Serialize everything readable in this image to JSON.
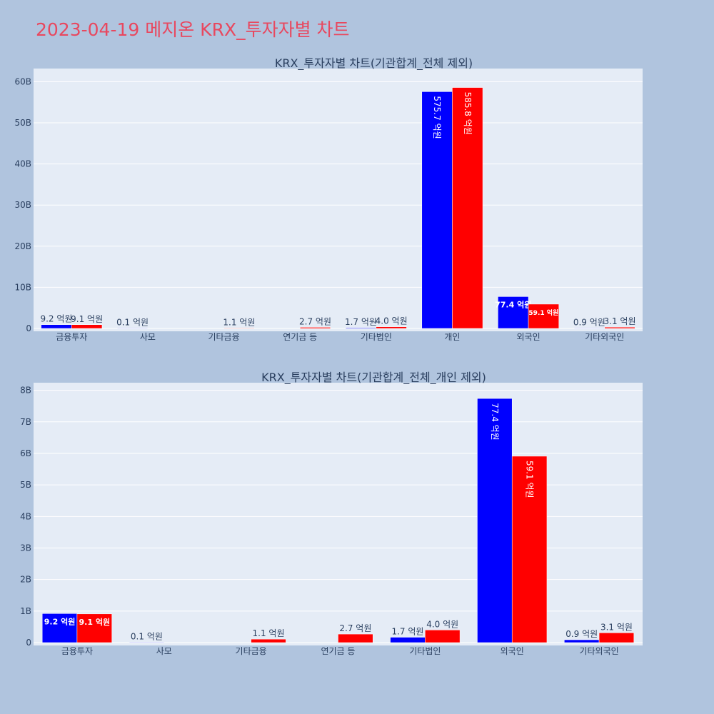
{
  "page": {
    "title": "2023-04-19 메지온 KRX_투자자별 차트"
  },
  "colors": {
    "background": "#b0c4de",
    "plot_bg": "#e5ecf6",
    "title": "#e8485f",
    "series_a": "#0000ff",
    "series_b": "#ff0000",
    "grid": "#ffffff",
    "text": "#2a3f5f"
  },
  "chart_data": [
    {
      "type": "bar",
      "title": "KRX_투자자별 차트(기관합계_전체 제외)",
      "categories": [
        "금융투자",
        "사모",
        "기타금융",
        "연기금 등",
        "기타법인",
        "개인",
        "외국인",
        "기타외국인"
      ],
      "series": [
        {
          "color": "#0000ff",
          "values": [
            0.92,
            0.01,
            null,
            null,
            0.17,
            57.57,
            7.74,
            0.09
          ],
          "labels": [
            "9.2 억원",
            "0.1 억원",
            "",
            "",
            "1.7 억원",
            "575.7 억원",
            "77.4 억원",
            "0.9 억원"
          ]
        },
        {
          "color": "#ff0000",
          "values": [
            0.91,
            null,
            0.11,
            0.27,
            0.4,
            58.58,
            5.91,
            0.31
          ],
          "labels": [
            "9.1 억원",
            "",
            "1.1 억원",
            "2.7 억원",
            "4.0 억원",
            "585.8 억원",
            "59.1 억원",
            "3.1 억원"
          ]
        }
      ],
      "ylim": [
        0,
        62.5
      ],
      "yticks": [
        0,
        10,
        20,
        30,
        40,
        50,
        60
      ],
      "ytick_labels": [
        "0",
        "10B",
        "20B",
        "30B",
        "40B",
        "50B",
        "60B"
      ],
      "grid": true
    },
    {
      "type": "bar",
      "title": "KRX_투자자별 차트(기관합계_전체_개인 제외)",
      "categories": [
        "금융투자",
        "사모",
        "기타금융",
        "연기금 등",
        "기타법인",
        "외국인",
        "기타외국인"
      ],
      "series": [
        {
          "color": "#0000ff",
          "values": [
            0.92,
            0.01,
            null,
            null,
            0.17,
            7.74,
            0.09
          ],
          "labels": [
            "9.2 억원",
            "0.1 억원",
            "",
            "",
            "1.7 억원",
            "77.4 억원",
            "0.9 억원"
          ]
        },
        {
          "color": "#ff0000",
          "values": [
            0.91,
            null,
            0.11,
            0.27,
            0.4,
            5.91,
            0.31
          ],
          "labels": [
            "9.1 억원",
            "",
            "1.1 억원",
            "2.7 억원",
            "4.0 억원",
            "59.1 억원",
            "3.1 억원"
          ]
        }
      ],
      "ylim": [
        0,
        8.15
      ],
      "yticks": [
        0,
        1,
        2,
        3,
        4,
        5,
        6,
        7,
        8
      ],
      "ytick_labels": [
        "0",
        "1B",
        "2B",
        "3B",
        "4B",
        "5B",
        "6B",
        "7B",
        "8B"
      ],
      "grid": true
    }
  ]
}
